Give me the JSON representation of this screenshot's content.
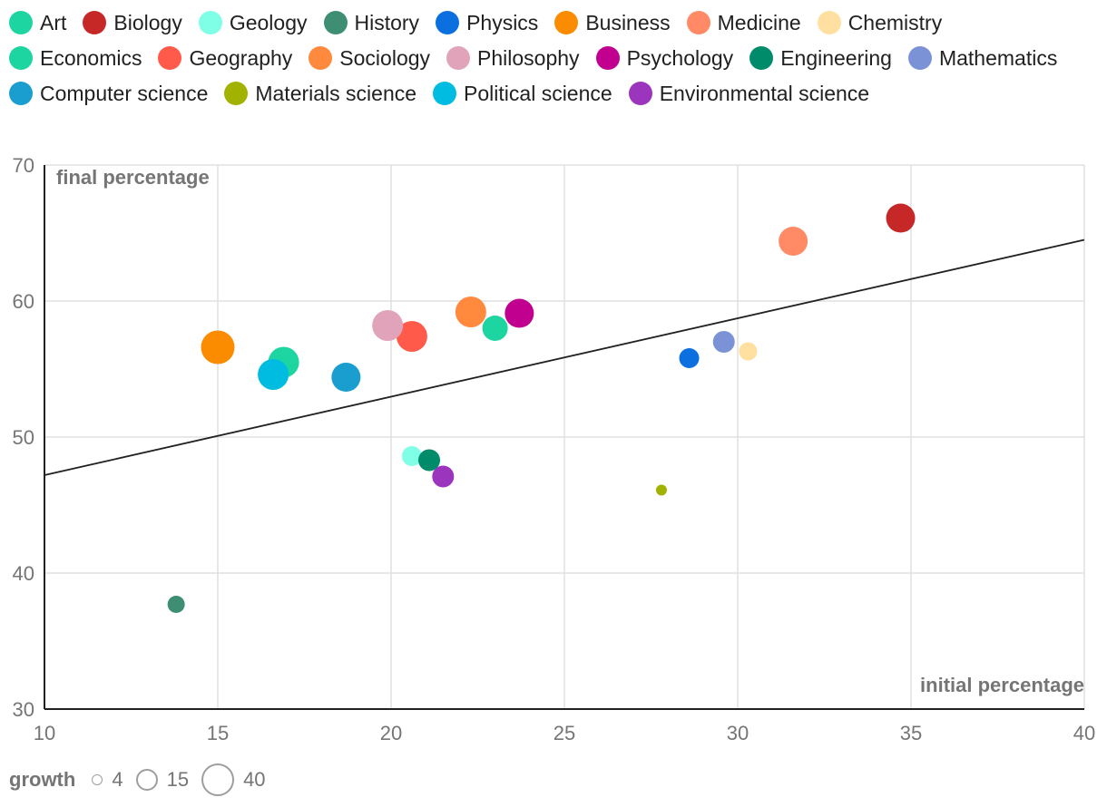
{
  "chart_data": {
    "type": "scatter",
    "xlabel": "initial percentage",
    "ylabel": "final percentage",
    "xlim": [
      10,
      40
    ],
    "ylim": [
      30,
      70
    ],
    "x_ticks": [
      "10",
      "15",
      "20",
      "25",
      "30",
      "35",
      "40"
    ],
    "y_ticks": [
      "30",
      "40",
      "50",
      "60",
      "70"
    ],
    "grid": true,
    "trend_line": {
      "x": [
        10,
        40
      ],
      "y": [
        47.2,
        64.5
      ]
    },
    "size_legend": {
      "title": "growth",
      "values": [
        "4",
        "15",
        "40"
      ]
    },
    "series": [
      {
        "name": "Art",
        "color": "#1DD5A0",
        "x": 16.9,
        "y": 55.5,
        "size": 30
      },
      {
        "name": "Biology",
        "color": "#C62828",
        "x": 34.7,
        "y": 66.1,
        "size": 28
      },
      {
        "name": "Geology",
        "color": "#7FFFE6",
        "x": 20.6,
        "y": 48.6,
        "size": 18
      },
      {
        "name": "History",
        "color": "#3E8E74",
        "x": 13.8,
        "y": 37.7,
        "size": 15
      },
      {
        "name": "Physics",
        "color": "#0B6FE0",
        "x": 28.6,
        "y": 55.8,
        "size": 18
      },
      {
        "name": "Business",
        "color": "#FB8C00",
        "x": 15.0,
        "y": 56.6,
        "size": 33
      },
      {
        "name": "Medicine",
        "color": "#FF8A65",
        "x": 31.6,
        "y": 64.4,
        "size": 28
      },
      {
        "name": "Chemistry",
        "color": "#FFE0A0",
        "x": 30.3,
        "y": 56.3,
        "size": 16
      },
      {
        "name": "Economics",
        "color": "#1DD5A0",
        "x": 23.0,
        "y": 58.0,
        "size": 24
      },
      {
        "name": "Geography",
        "color": "#FF5A4A",
        "x": 20.6,
        "y": 57.4,
        "size": 30
      },
      {
        "name": "Sociology",
        "color": "#FF8A3D",
        "x": 22.3,
        "y": 59.2,
        "size": 30
      },
      {
        "name": "Philosophy",
        "color": "#E0A3BA",
        "x": 19.9,
        "y": 58.2,
        "size": 30
      },
      {
        "name": "Psychology",
        "color": "#C2008F",
        "x": 23.7,
        "y": 59.1,
        "size": 28
      },
      {
        "name": "Engineering",
        "color": "#008C6A",
        "x": 21.1,
        "y": 48.3,
        "size": 20
      },
      {
        "name": "Mathematics",
        "color": "#7B93D6",
        "x": 29.6,
        "y": 57.0,
        "size": 20
      },
      {
        "name": "Computer science",
        "color": "#1A9ED0",
        "x": 18.7,
        "y": 54.4,
        "size": 28
      },
      {
        "name": "Materials science",
        "color": "#A2B200",
        "x": 27.8,
        "y": 46.1,
        "size": 8
      },
      {
        "name": "Political science",
        "color": "#00BCE0",
        "x": 16.6,
        "y": 54.6,
        "size": 30
      },
      {
        "name": "Environmental science",
        "color": "#9C35BD",
        "x": 21.5,
        "y": 47.1,
        "size": 20
      }
    ]
  }
}
